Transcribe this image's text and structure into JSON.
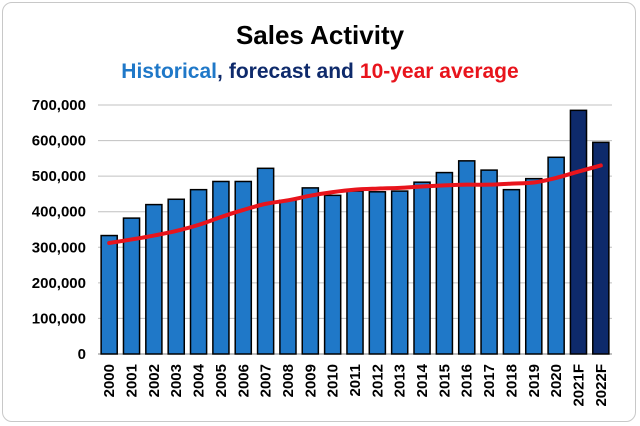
{
  "chart_data": {
    "type": "bar",
    "title": "Sales Activity",
    "subtitle": {
      "historical": "Historical",
      "comma": ",",
      "forecast": "forecast",
      "and": "and",
      "average": "10-year average"
    },
    "categories": [
      "2000",
      "2001",
      "2002",
      "2003",
      "2004",
      "2005",
      "2006",
      "2007",
      "2008",
      "2009",
      "2010",
      "2011",
      "2012",
      "2013",
      "2014",
      "2015",
      "2016",
      "2017",
      "2018",
      "2019",
      "2020",
      "2021F",
      "2022F"
    ],
    "series": [
      {
        "values": [
          333000,
          382000,
          420000,
          435000,
          462000,
          485000,
          485000,
          522000,
          432000,
          467000,
          446000,
          458000,
          456000,
          458000,
          483000,
          510000,
          543000,
          517000,
          462000,
          493000,
          553000,
          685000,
          595000
        ],
        "kinds": [
          "historical",
          "historical",
          "historical",
          "historical",
          "historical",
          "historical",
          "historical",
          "historical",
          "historical",
          "historical",
          "historical",
          "historical",
          "historical",
          "historical",
          "historical",
          "historical",
          "historical",
          "historical",
          "historical",
          "historical",
          "historical",
          "forecast",
          "forecast"
        ]
      },
      {
        "type": "line",
        "values": [
          312000,
          322000,
          333000,
          346000,
          363000,
          385000,
          405000,
          422000,
          432000,
          445000,
          455000,
          462000,
          465000,
          467000,
          471000,
          474000,
          476000,
          476000,
          479000,
          482000,
          495000,
          513000,
          530000
        ]
      }
    ],
    "y_ticks": [
      "0",
      "100,000",
      "200,000",
      "300,000",
      "400,000",
      "500,000",
      "600,000",
      "700,000"
    ],
    "ylim": [
      0,
      700000
    ],
    "grid": true,
    "legend": "none",
    "colors": {
      "historical": "#1f78c8",
      "forecast": "#0e2a6b",
      "average_line": "#e8141c",
      "grid": "#c0c0c0",
      "title": "#000000"
    }
  }
}
